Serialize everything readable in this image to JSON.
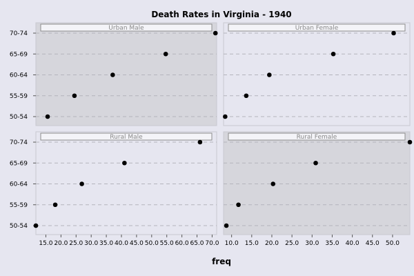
{
  "chart_data": {
    "type": "scatter",
    "title": "Death Rates in Virginia - 1940",
    "xlabel": "freq",
    "ylabel": "",
    "categories": [
      "50-54",
      "55-59",
      "60-64",
      "65-69",
      "70-74"
    ],
    "grid": true,
    "panels": [
      {
        "name": "Urban Male",
        "values": [
          15.4,
          24.3,
          37.0,
          54.6,
          71.1
        ],
        "xlim": [
          11.5,
          71.5
        ],
        "xticks": [],
        "shaded": true
      },
      {
        "name": "Urban Female",
        "values": [
          8.4,
          13.6,
          19.3,
          35.1,
          50.0
        ],
        "xlim": [
          8.0,
          54.0
        ],
        "xticks": [],
        "shaded": false
      },
      {
        "name": "Rural Male",
        "values": [
          11.7,
          18.1,
          26.9,
          41.0,
          66.0
        ],
        "xlim": [
          11.7,
          71.5
        ],
        "xticks": [
          "15.0",
          "20.0",
          "25.0",
          "30.0",
          "35.0",
          "40.0",
          "45.0",
          "50.0",
          "55.0",
          "60.0",
          "65.0",
          "70.0"
        ],
        "shaded": false
      },
      {
        "name": "Rural Female",
        "values": [
          8.7,
          11.7,
          20.3,
          30.9,
          54.3
        ],
        "xlim": [
          8.0,
          54.3
        ],
        "xticks": [
          "10.0",
          "15.0",
          "20.0",
          "25.0",
          "30.0",
          "35.0",
          "40.0",
          "45.0",
          "50.0"
        ],
        "shaded": true
      }
    ]
  }
}
